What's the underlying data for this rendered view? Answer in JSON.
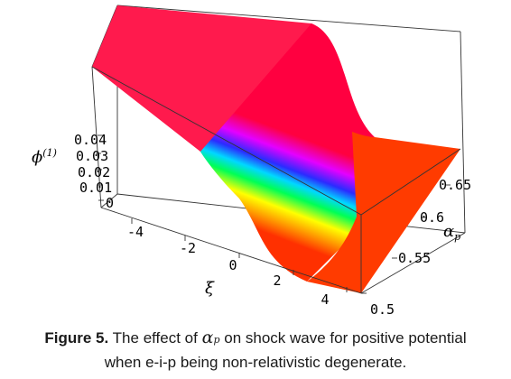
{
  "caption": {
    "label": "Figure 5.",
    "text_before": "The effect of",
    "symbol": "α",
    "symbol_sub": "p",
    "text_after": "on shock wave for positive potential",
    "line2": "when e-i-p being non-relativistic degenerate."
  },
  "chart_data": {
    "type": "surface3d",
    "axes": {
      "z": {
        "label": "ϕ",
        "label_sup": "(1)",
        "range": [
          0,
          0.04
        ],
        "ticks": [
          "0",
          "0.01",
          "0.02",
          "0.03",
          "0.04"
        ]
      },
      "xi": {
        "label": "ξ",
        "range": [
          -5,
          5
        ],
        "ticks": [
          "-4",
          "-2",
          "0",
          "2",
          "4"
        ]
      },
      "alpha": {
        "label": "α",
        "label_sub": "p",
        "range": [
          0.5,
          0.68
        ],
        "ticks": [
          "0.5",
          "0.55",
          "0.6",
          "0.65"
        ]
      }
    },
    "surface": {
      "shape": "shock (kink) profile",
      "z_left_plateau": 0.04,
      "z_right_plateau": 0.0,
      "transition_xi": 0,
      "colormap": "hue rainbow by height"
    },
    "colors": {
      "low": "#ff3300",
      "high": "#ff0033"
    }
  }
}
